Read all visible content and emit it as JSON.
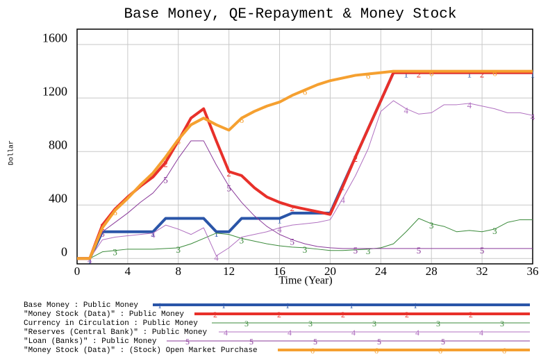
{
  "chart_data": {
    "type": "line",
    "title": "Base Money, QE-Repayment & Money Stock",
    "x_label": "Time (Year)",
    "y_label": "Dollar",
    "x": [
      0,
      1,
      2,
      3,
      4,
      5,
      6,
      7,
      8,
      9,
      10,
      11,
      12,
      13,
      14,
      15,
      16,
      17,
      18,
      19,
      20,
      21,
      22,
      23,
      24,
      25,
      26,
      27,
      28,
      29,
      30,
      31,
      32,
      33,
      34,
      35,
      36
    ],
    "xlim": [
      0,
      36
    ],
    "xticks": [
      0,
      4,
      8,
      12,
      16,
      20,
      24,
      28,
      32,
      36
    ],
    "ylim": [
      -40,
      1715
    ],
    "yticks": [
      0,
      400,
      800,
      1200,
      1600
    ],
    "grid": true,
    "series": [
      {
        "name": "Base Money : Public Money",
        "marker": "1",
        "color": "#2a55a8",
        "values": [
          0,
          0,
          200,
          200,
          200,
          200,
          200,
          300,
          300,
          300,
          300,
          200,
          200,
          300,
          300,
          300,
          300,
          340,
          340,
          340,
          340,
          550,
          760,
          970,
          1180,
          1390,
          1390,
          1390,
          1390,
          1390,
          1390,
          1390,
          1390,
          1390,
          1390,
          1390,
          1390
        ]
      },
      {
        "name": "\"Money Stock (Data)\" : Public Money",
        "marker": "2",
        "color": "#e8302a",
        "values": [
          0,
          0,
          250,
          370,
          460,
          540,
          610,
          720,
          880,
          1050,
          1120,
          880,
          650,
          620,
          530,
          460,
          420,
          390,
          370,
          350,
          330,
          540,
          760,
          970,
          1180,
          1390,
          1390,
          1390,
          1390,
          1390,
          1390,
          1390,
          1390,
          1390,
          1390,
          1390,
          1390
        ]
      },
      {
        "name": "Currency in Circulation : Public Money",
        "marker": "3",
        "color": "#3a8a3a",
        "values": [
          0,
          0,
          50,
          60,
          70,
          70,
          70,
          75,
          80,
          110,
          150,
          190,
          180,
          150,
          130,
          110,
          95,
          85,
          80,
          70,
          60,
          60,
          65,
          70,
          80,
          110,
          200,
          300,
          260,
          240,
          200,
          210,
          200,
          220,
          270,
          290,
          290
        ]
      },
      {
        "name": "\"Reserves (Central Bank)\" : Public Money",
        "marker": "4",
        "color": "#b070c0",
        "values": [
          0,
          0,
          140,
          160,
          170,
          180,
          190,
          250,
          220,
          180,
          230,
          20,
          80,
          160,
          180,
          200,
          230,
          250,
          260,
          270,
          290,
          450,
          620,
          820,
          1100,
          1180,
          1120,
          1080,
          1090,
          1150,
          1150,
          1160,
          1140,
          1120,
          1090,
          1090,
          1070
        ]
      },
      {
        "name": "\"Loan (Banks)\" : Public Money",
        "marker": "5",
        "color": "#8a3a9a",
        "values": [
          0,
          0,
          200,
          270,
          340,
          420,
          490,
          600,
          750,
          880,
          880,
          700,
          540,
          420,
          320,
          240,
          180,
          140,
          110,
          90,
          80,
          75,
          75,
          75,
          75,
          75,
          75,
          75,
          75,
          75,
          75,
          75,
          75,
          75,
          75,
          75,
          75
        ]
      },
      {
        "name": "\"Money Stock (Data)\" : (Stock) Open Market Purchase",
        "marker": "6",
        "color": "#f5a030",
        "values": [
          0,
          0,
          230,
          360,
          450,
          550,
          640,
          760,
          890,
          1000,
          1050,
          1000,
          960,
          1050,
          1100,
          1140,
          1170,
          1220,
          1260,
          1300,
          1330,
          1350,
          1370,
          1380,
          1390,
          1400,
          1400,
          1400,
          1400,
          1400,
          1400,
          1400,
          1400,
          1400,
          1400,
          1400,
          1400
        ]
      }
    ]
  }
}
